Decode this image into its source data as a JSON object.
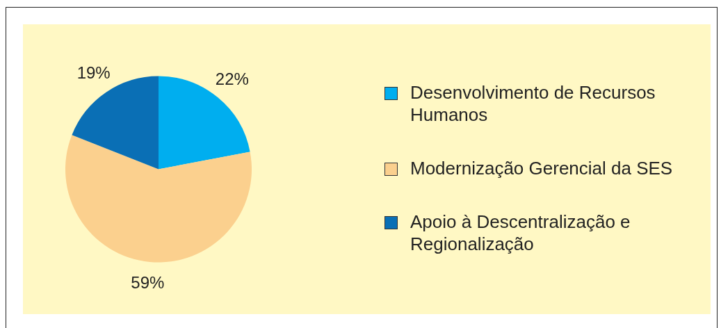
{
  "chart_data": {
    "type": "pie",
    "categories": [
      "Desenvolvimento de Recursos Humanos",
      "Modernização Gerencial da SES",
      "Apoio à Descentralização e Regionalização"
    ],
    "values": [
      22,
      59,
      19
    ],
    "colors": [
      "#00aeef",
      "#fbd08e",
      "#0a6fb5"
    ],
    "value_labels": [
      "22%",
      "59%",
      "19%"
    ],
    "legend": "right"
  }
}
